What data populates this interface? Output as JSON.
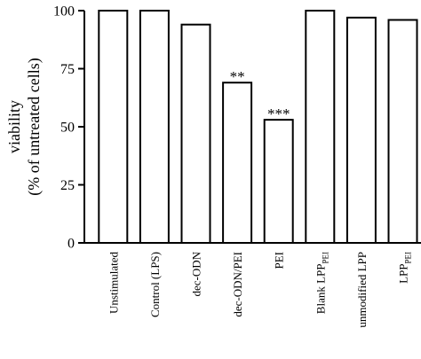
{
  "chart_data": {
    "type": "bar",
    "title": "",
    "xlabel": "",
    "ylabel": "viability",
    "ylabel2": "(% of untreated cells)",
    "ylim": [
      0,
      100
    ],
    "yticks": [
      "0",
      "25",
      "50",
      "75",
      "100"
    ],
    "ytick_values": [
      0,
      25,
      50,
      75,
      100
    ],
    "grid": false,
    "bar_fill": "#ffffff",
    "bar_stroke": "#000000",
    "categories": [
      {
        "label": "Unstimulated",
        "sub": ""
      },
      {
        "label": "Control (LPS)",
        "sub": ""
      },
      {
        "label": "dec-ODN",
        "sub": ""
      },
      {
        "label": "dec-ODN/PEI",
        "sub": ""
      },
      {
        "label": "PEI",
        "sub": ""
      },
      {
        "label": "Blank LPP",
        "sub": "PEI"
      },
      {
        "label": "unmodified LPP",
        "sub": ""
      },
      {
        "label": "LPP",
        "sub": "PEI"
      }
    ],
    "values": [
      100,
      100,
      94,
      69,
      53,
      100,
      97,
      96
    ],
    "annotations": [
      "",
      "",
      "",
      "**",
      "***",
      "",
      "",
      ""
    ]
  }
}
